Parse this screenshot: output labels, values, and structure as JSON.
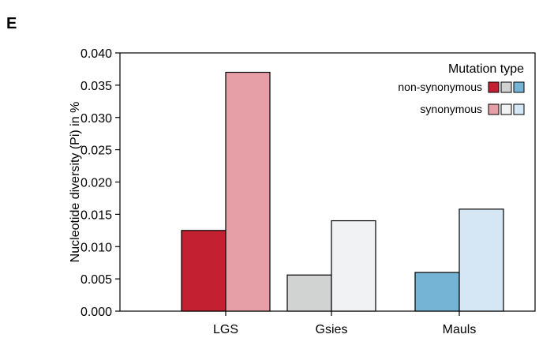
{
  "panel_letter": "E",
  "chart_data": {
    "type": "bar",
    "title": "",
    "xlabel": "",
    "ylabel": "Nucleotide diversity (Pi) in %",
    "ylim": [
      0,
      0.04
    ],
    "yticks": [
      "0.000",
      "0.005",
      "0.010",
      "0.015",
      "0.020",
      "0.025",
      "0.030",
      "0.035",
      "0.040"
    ],
    "categories": [
      "LGS",
      "Gsies",
      "Mauls"
    ],
    "series": [
      {
        "name": "non-synonymous",
        "values": [
          0.0125,
          0.0056,
          0.006
        ],
        "colors": [
          "#c32032",
          "#d1d3d2",
          "#76b4d6"
        ]
      },
      {
        "name": "synonymous",
        "values": [
          0.037,
          0.014,
          0.0158
        ],
        "colors": [
          "#e69ea7",
          "#f1f2f4",
          "#d5e7f4"
        ]
      }
    ],
    "legend": {
      "title": "Mutation type",
      "position": "top-right"
    },
    "grid": false
  }
}
